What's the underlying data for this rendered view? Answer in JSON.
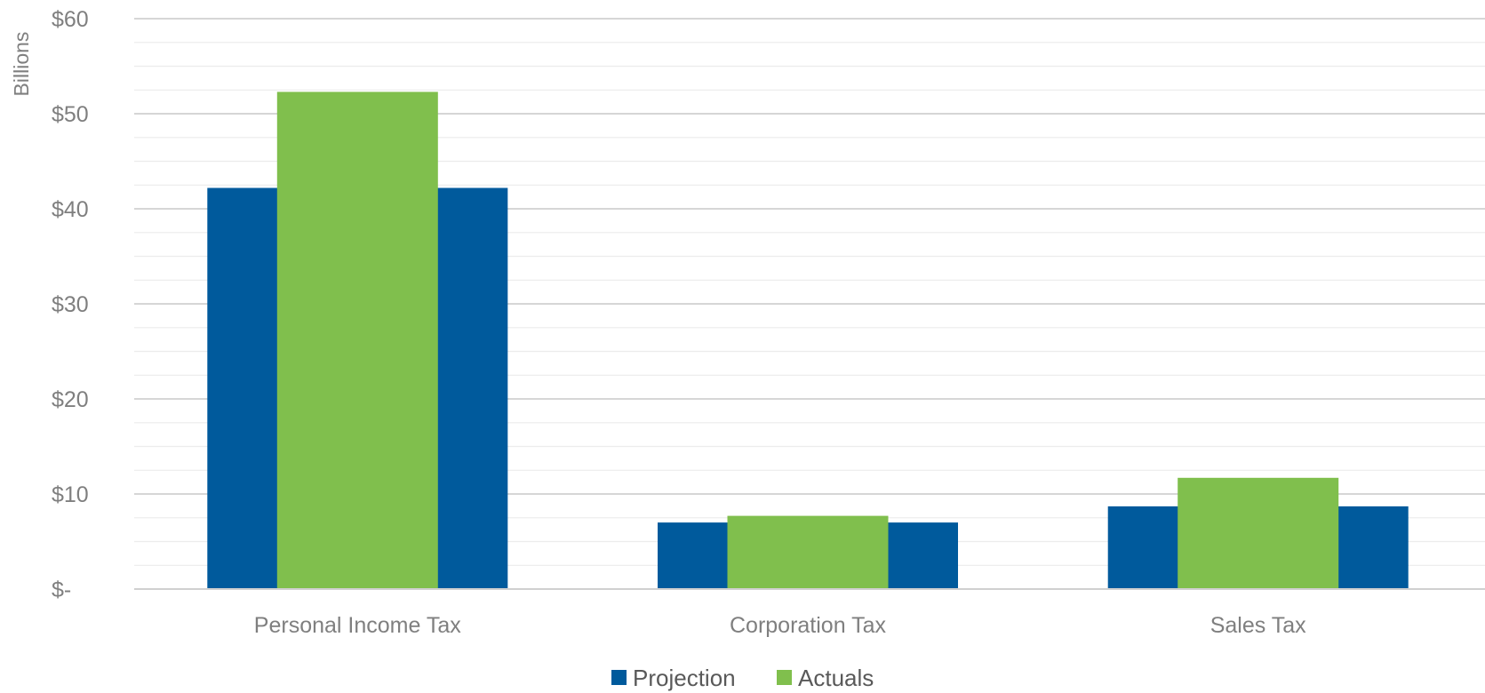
{
  "chart_data": {
    "type": "bar",
    "title": "",
    "xlabel": "",
    "ylabel": "Billions",
    "ylim": [
      0,
      60
    ],
    "y_ticks": [
      0,
      10,
      20,
      30,
      40,
      50,
      60
    ],
    "y_tick_labels": [
      "$-",
      "$10",
      "$20",
      "$30",
      "$40",
      "$50",
      "$60"
    ],
    "grid": true,
    "legend_position": "bottom",
    "categories": [
      "Personal Income Tax",
      "Corporation Tax",
      "Sales Tax"
    ],
    "series": [
      {
        "name": "Projection",
        "color": "#005a9c",
        "values": [
          42.2,
          7.0,
          8.7
        ]
      },
      {
        "name": "Actuals",
        "color": "#80bf4d",
        "values": [
          52.3,
          7.7,
          11.7
        ]
      }
    ]
  }
}
